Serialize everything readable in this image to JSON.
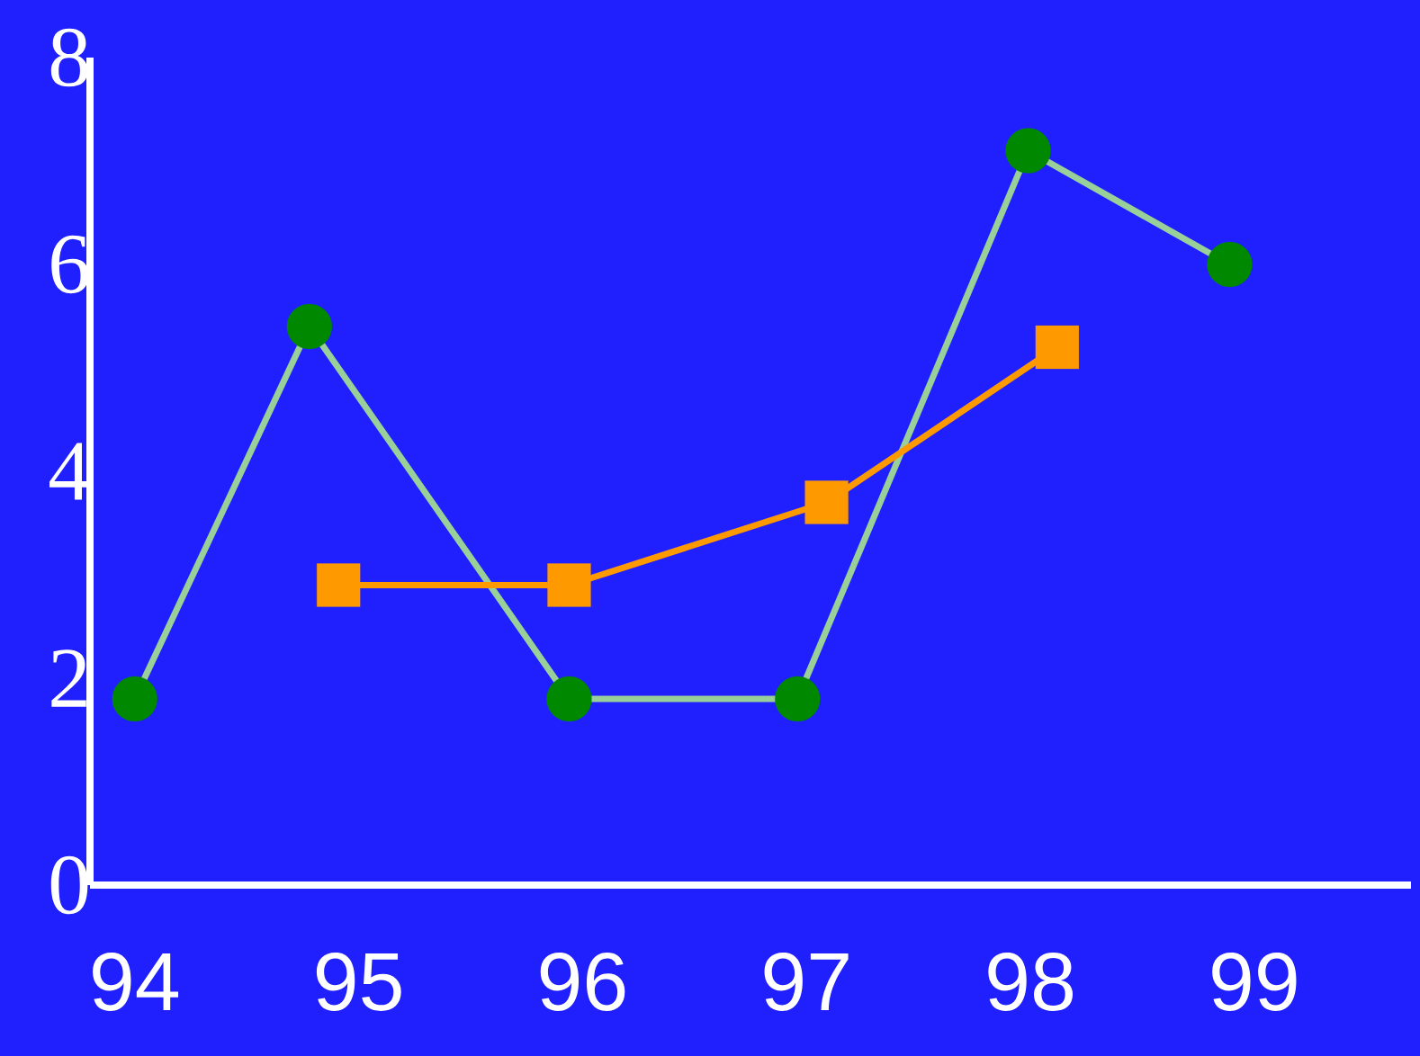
{
  "chart_data": {
    "type": "line",
    "xlim": [
      93.8,
      99.7
    ],
    "ylim": [
      0,
      8
    ],
    "xticks": [
      94,
      95,
      96,
      97,
      98,
      99
    ],
    "yticks": [
      0,
      2,
      4,
      6,
      8
    ],
    "grid": false,
    "series": [
      {
        "color": "#008800",
        "marker": "circle",
        "x": [
          94,
          94.78,
          95.94,
          96.96,
          97.99,
          98.89
        ],
        "values": [
          1.8,
          5.4,
          1.8,
          1.8,
          7.1,
          6.0
        ]
      },
      {
        "color": "#ff9900",
        "marker": "square",
        "x": [
          94.91,
          95.94,
          97.09,
          98.12
        ],
        "values": [
          2.9,
          2.9,
          3.7,
          5.2
        ]
      }
    ]
  }
}
